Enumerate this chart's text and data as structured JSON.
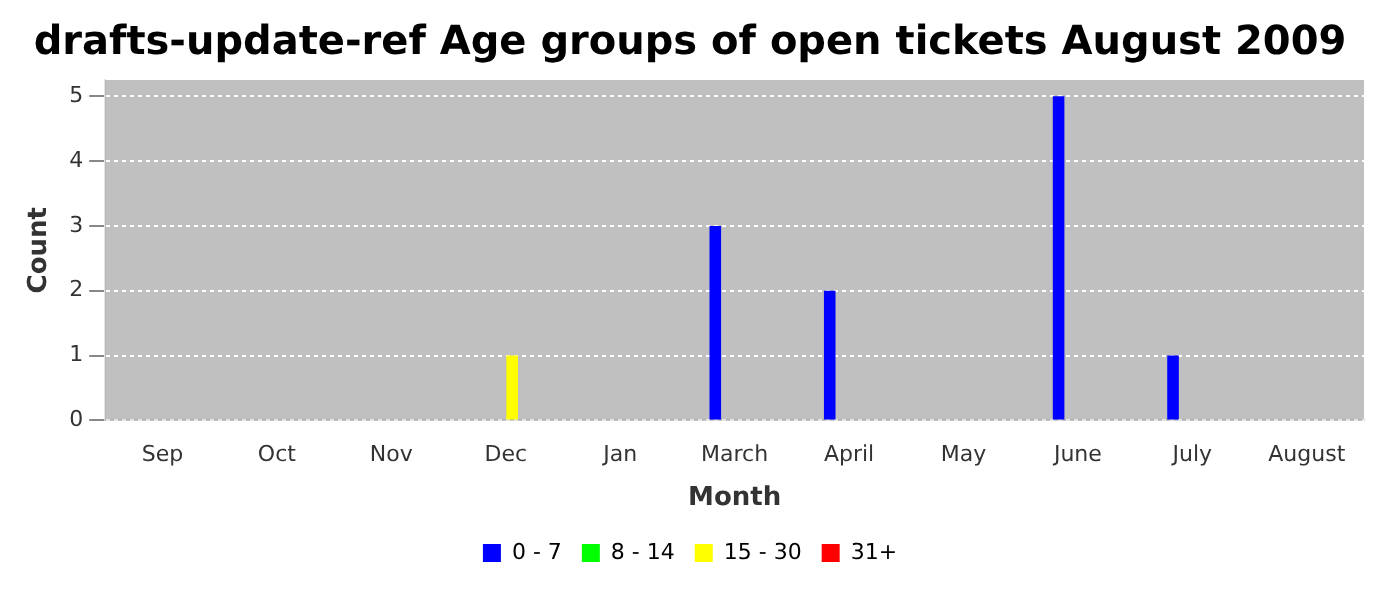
{
  "chart_data": {
    "type": "bar",
    "title": "drafts-update-ref Age groups of open tickets August 2009",
    "xlabel": "Month",
    "ylabel": "Count",
    "categories": [
      "Sep",
      "Oct",
      "Nov",
      "Dec",
      "Jan",
      "March",
      "April",
      "May",
      "June",
      "July",
      "August"
    ],
    "series": [
      {
        "name": "0 - 7",
        "color": "#0000ff",
        "values": [
          0,
          0,
          0,
          0,
          0,
          3,
          2,
          0,
          5,
          1,
          0
        ]
      },
      {
        "name": "8 - 14",
        "color": "#00ff00",
        "values": [
          0,
          0,
          0,
          0,
          0,
          0,
          0,
          0,
          0,
          0,
          0
        ]
      },
      {
        "name": "15 - 30",
        "color": "#ffff00",
        "values": [
          0,
          0,
          0,
          1,
          0,
          0,
          0,
          0,
          0,
          0,
          0
        ]
      },
      {
        "name": "31+",
        "color": "#ff0000",
        "values": [
          0,
          0,
          0,
          0,
          0,
          0,
          0,
          0,
          0,
          0,
          0
        ]
      }
    ],
    "ylim": [
      0,
      5.25
    ],
    "yticks": [
      0,
      1,
      2,
      3,
      4,
      5
    ],
    "grid": "y",
    "legend": "bottom"
  }
}
